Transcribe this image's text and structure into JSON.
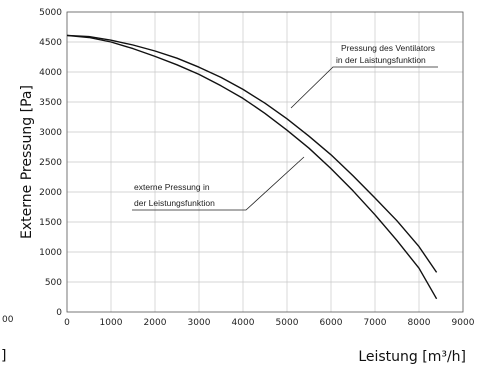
{
  "chart_data": {
    "type": "line",
    "xlabel": "Leistung [m³/h]",
    "ylabel": "Externe Pressung [Pa]",
    "xlim": [
      0,
      9000
    ],
    "ylim": [
      0,
      5000
    ],
    "xticks": [
      "0",
      "1000",
      "2000",
      "3000",
      "4000",
      "5000",
      "6000",
      "7000",
      "8000",
      "9000"
    ],
    "yticks": [
      "0",
      "500",
      "1000",
      "1500",
      "2000",
      "2500",
      "3000",
      "3500",
      "4000",
      "4500",
      "5000"
    ],
    "grid": true,
    "series": [
      {
        "x": [
          0,
          500,
          1000,
          1500,
          2000,
          2500,
          3000,
          3500,
          4000,
          4500,
          5000,
          5500,
          6000,
          6500,
          7000,
          7500,
          8000,
          8400
        ],
        "y": [
          4610,
          4590,
          4530,
          4450,
          4350,
          4230,
          4080,
          3910,
          3710,
          3480,
          3220,
          2930,
          2620,
          2270,
          1900,
          1520,
          1090,
          660
        ]
      },
      {
        "x": [
          0,
          500,
          1000,
          1500,
          2000,
          2500,
          3000,
          3500,
          4000,
          4500,
          5000,
          5500,
          6000,
          6500,
          7000,
          7500,
          8000,
          8400
        ],
        "y": [
          4610,
          4575,
          4500,
          4390,
          4260,
          4120,
          3960,
          3770,
          3560,
          3310,
          3030,
          2730,
          2390,
          2020,
          1620,
          1190,
          730,
          220
        ]
      }
    ],
    "annotations": [
      {
        "line1": "Pressung des Ventilators",
        "line2": "in der Laistungsfunktion"
      },
      {
        "line1": "externe Pressung in",
        "line2": "der Leistungsfunktion"
      }
    ]
  },
  "edge_fragments": {
    "left_number": "00",
    "left_bracket": "]"
  },
  "colors": {
    "curve": "#111111",
    "grid": "#c8c8c8",
    "frame": "#555555"
  }
}
